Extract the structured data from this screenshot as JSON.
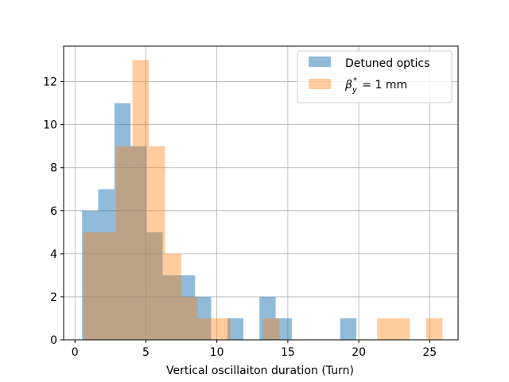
{
  "chart_data": {
    "type": "bar",
    "bins": [
      {
        "x0": 0.5,
        "x1": 1.64
      },
      {
        "x0": 1.64,
        "x1": 2.78
      },
      {
        "x0": 2.78,
        "x1": 3.92
      },
      {
        "x0": 3.92,
        "x1": 5.05
      },
      {
        "x0": 5.05,
        "x1": 6.18
      },
      {
        "x0": 6.18,
        "x1": 7.32
      },
      {
        "x0": 7.32,
        "x1": 8.46
      },
      {
        "x0": 8.46,
        "x1": 9.6
      },
      {
        "x0": 9.6,
        "x1": 10.74
      },
      {
        "x0": 10.74,
        "x1": 11.87
      },
      {
        "x0": 11.87,
        "x1": 13.0
      },
      {
        "x0": 13.0,
        "x1": 14.14
      },
      {
        "x0": 14.14,
        "x1": 15.28
      },
      {
        "x0": 15.28,
        "x1": 16.42
      },
      {
        "x0": 16.42,
        "x1": 17.56
      },
      {
        "x0": 17.56,
        "x1": 18.69
      },
      {
        "x0": 18.69,
        "x1": 19.83
      },
      {
        "x0": 19.83,
        "x1": 20.96
      },
      {
        "x0": 20.96,
        "x1": 22.1
      },
      {
        "x0": 22.1,
        "x1": 23.24
      },
      {
        "x0": 23.24,
        "x1": 24.38
      },
      {
        "x0": 24.38,
        "x1": 25.52
      }
    ],
    "series": [
      {
        "name": "Detuned optics",
        "color": "#1f77b4",
        "alpha": 0.5,
        "bins": [
          {
            "x0": 0.5,
            "x1": 1.64,
            "count": 6
          },
          {
            "x0": 1.64,
            "x1": 2.78,
            "count": 7
          },
          {
            "x0": 2.78,
            "x1": 3.92,
            "count": 11
          },
          {
            "x0": 3.92,
            "x1": 5.05,
            "count": 9
          },
          {
            "x0": 5.05,
            "x1": 6.18,
            "count": 5
          },
          {
            "x0": 6.18,
            "x1": 7.32,
            "count": 3
          },
          {
            "x0": 7.32,
            "x1": 8.46,
            "count": 3
          },
          {
            "x0": 8.46,
            "x1": 9.6,
            "count": 2
          },
          {
            "x0": 10.74,
            "x1": 11.87,
            "count": 1
          },
          {
            "x0": 13.0,
            "x1": 14.14,
            "count": 2
          },
          {
            "x0": 14.14,
            "x1": 15.28,
            "count": 1
          },
          {
            "x0": 18.69,
            "x1": 19.83,
            "count": 1
          }
        ]
      },
      {
        "name": "β_y* = 1 mm",
        "color": "#ff7f0e",
        "alpha": 0.4,
        "bins": [
          {
            "x0": 0.6,
            "x1": 1.75,
            "count": 5
          },
          {
            "x0": 1.75,
            "x1": 2.9,
            "count": 5
          },
          {
            "x0": 2.9,
            "x1": 4.05,
            "count": 9
          },
          {
            "x0": 4.05,
            "x1": 5.2,
            "count": 13
          },
          {
            "x0": 5.2,
            "x1": 6.35,
            "count": 9
          },
          {
            "x0": 6.35,
            "x1": 7.5,
            "count": 4
          },
          {
            "x0": 7.5,
            "x1": 8.65,
            "count": 2
          },
          {
            "x0": 8.65,
            "x1": 9.8,
            "count": 1
          },
          {
            "x0": 9.8,
            "x1": 10.95,
            "count": 1
          },
          {
            "x0": 13.25,
            "x1": 14.4,
            "count": 1
          },
          {
            "x0": 21.3,
            "x1": 22.45,
            "count": 1
          },
          {
            "x0": 22.45,
            "x1": 23.6,
            "count": 1
          },
          {
            "x0": 24.75,
            "x1": 25.9,
            "count": 1
          }
        ]
      }
    ],
    "title": "",
    "xlabel": "Vertical oscillaiton duration (Turn)",
    "ylabel": "",
    "xlim": [
      -0.8,
      27
    ],
    "ylim": [
      0,
      13.65
    ],
    "xticks": [
      0,
      5,
      10,
      15,
      20,
      25
    ],
    "yticks": [
      0,
      2,
      4,
      6,
      8,
      10,
      12
    ],
    "grid": true,
    "legend_position": "top-right",
    "legend": [
      {
        "label_main": "Detuned optics",
        "label_sub": "",
        "label_rest": ""
      },
      {
        "label_main": "β",
        "label_sub": "y",
        "label_sup": "*",
        "label_rest": " = 1 mm"
      }
    ]
  }
}
